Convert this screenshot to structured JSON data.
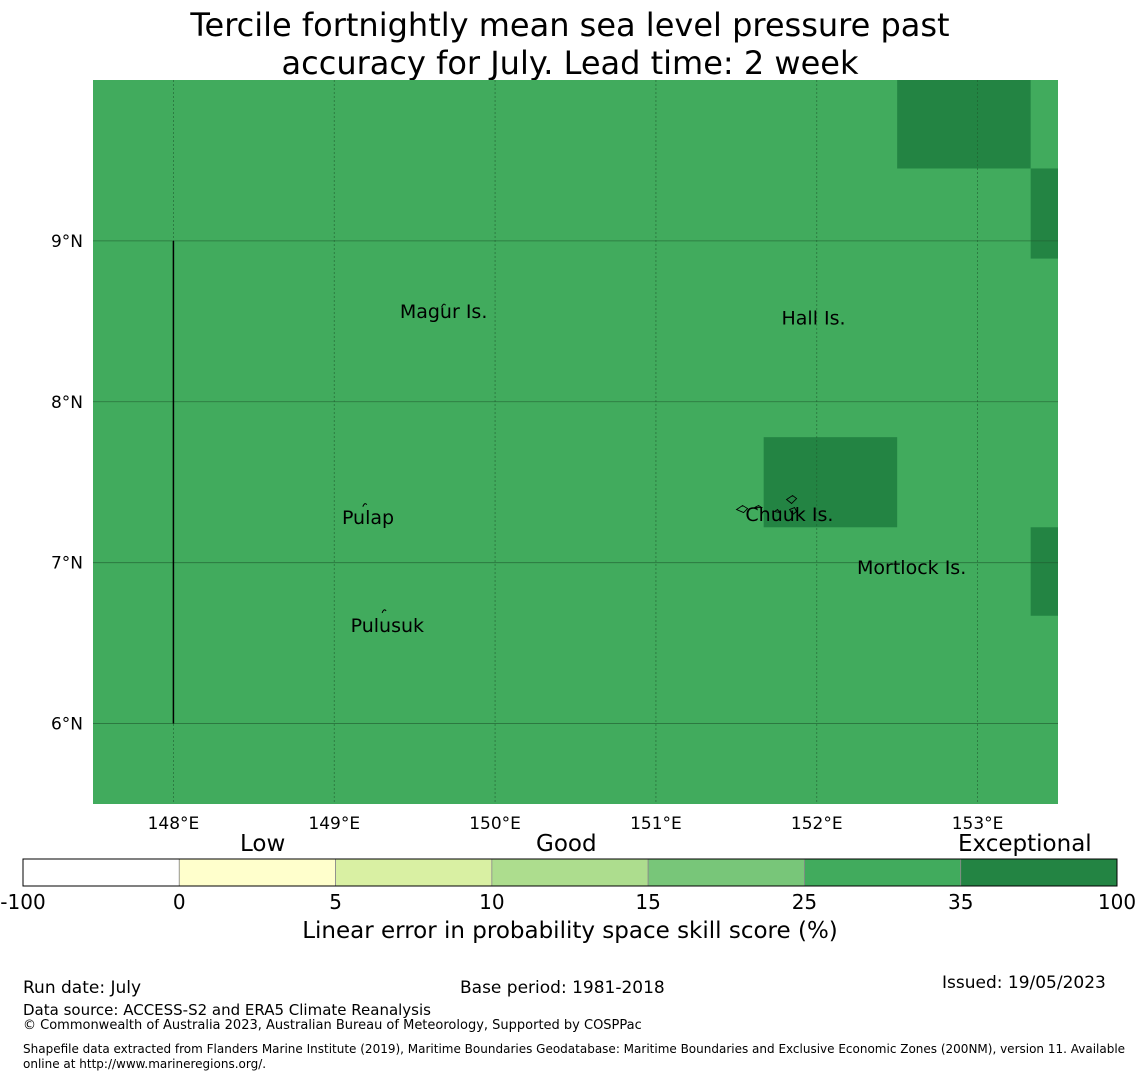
{
  "title": {
    "line1": "Tercile fortnightly mean sea level pressure past",
    "line2": "accuracy for July. Lead time: 2 week"
  },
  "map": {
    "lon_range": [
      147.5,
      153.5
    ],
    "lat_range": [
      5.5,
      10.0
    ],
    "base_color": "#41ab5d",
    "dark_color": "#238443",
    "grid": true,
    "lon_ticks": [
      {
        "value": 148,
        "label": "148°E"
      },
      {
        "value": 149,
        "label": "149°E"
      },
      {
        "value": 150,
        "label": "150°E"
      },
      {
        "value": 151,
        "label": "151°E"
      },
      {
        "value": 152,
        "label": "152°E"
      },
      {
        "value": 153,
        "label": "153°E"
      }
    ],
    "lat_ticks": [
      {
        "value": 9,
        "label": "9°N"
      },
      {
        "value": 8,
        "label": "8°N"
      },
      {
        "value": 7,
        "label": "7°N"
      },
      {
        "value": 6,
        "label": "6°N"
      }
    ],
    "dark_cells": [
      {
        "lon": [
          152.5,
          153.33
        ],
        "lat": [
          9.45,
          10.0
        ]
      },
      {
        "lon": [
          153.33,
          153.5
        ],
        "lat": [
          8.89,
          9.45
        ]
      },
      {
        "lon": [
          151.67,
          152.5
        ],
        "lat": [
          7.22,
          7.78
        ]
      },
      {
        "lon": [
          153.33,
          153.5
        ],
        "lat": [
          6.67,
          7.22
        ]
      }
    ],
    "boundary_line": {
      "lon": 148.0,
      "lat": [
        6.0,
        9.0
      ]
    },
    "places": [
      {
        "name": "Magur Is.",
        "lon": 149.68,
        "lat": 8.52
      },
      {
        "name": "Hall Is.",
        "lon": 151.98,
        "lat": 8.48
      },
      {
        "name": "Pulap",
        "lon": 149.21,
        "lat": 7.24
      },
      {
        "name": "Chuuk Is.",
        "lon": 151.83,
        "lat": 7.26
      },
      {
        "name": "Mortlock Is.",
        "lon": 152.59,
        "lat": 6.93
      },
      {
        "name": "Pulusuk",
        "lon": 149.33,
        "lat": 6.57
      }
    ]
  },
  "colorbar": {
    "categories": [
      "Low",
      "Good",
      "Exceptional"
    ],
    "bins": [
      {
        "from": -100,
        "to": 0,
        "color": "#ffffff"
      },
      {
        "from": 0,
        "to": 5,
        "color": "#ffffcc"
      },
      {
        "from": 5,
        "to": 10,
        "color": "#d9f0a3"
      },
      {
        "from": 10,
        "to": 15,
        "color": "#addd8e"
      },
      {
        "from": 15,
        "to": 25,
        "color": "#78c679"
      },
      {
        "from": 25,
        "to": 35,
        "color": "#41ab5d"
      },
      {
        "from": 35,
        "to": 100,
        "color": "#238443"
      }
    ],
    "tick_labels": [
      "-100",
      "0",
      "5",
      "10",
      "15",
      "25",
      "35",
      "100"
    ],
    "axis_label": "Linear error in probability space skill score (%)"
  },
  "footer": {
    "run_date": "Run date: July",
    "base_period": "Base period: 1981-2018",
    "issued": "Issued: 19/05/2023",
    "data_source": "Data source: ACCESS-S2 and ERA5 Climate Reanalysis",
    "copyright": "© Commonwealth of Australia 2023, Australian Bureau of Meteorology, Supported by COSPPac",
    "shapefile": "Shapefile data extracted from Flanders Marine Institute (2019), Maritime Boundaries Geodatabase: Maritime Boundaries and Exclusive Economic Zones (200NM), version 11. Available online at http://www.marineregions.org/."
  }
}
